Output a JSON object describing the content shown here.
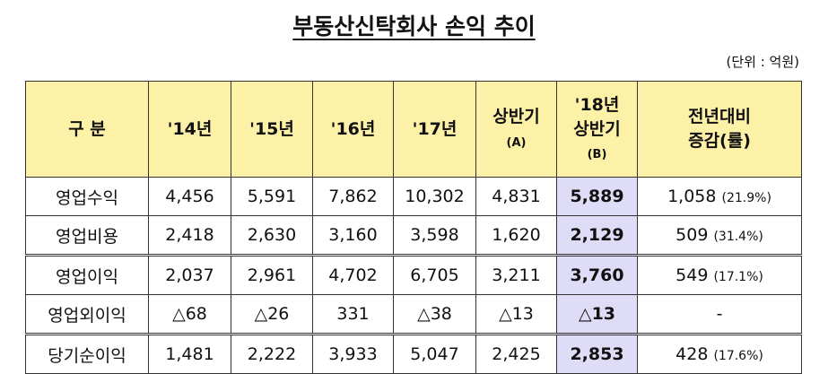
{
  "header": {
    "title": "부동산신탁회사 손익 추이",
    "unit": "(단위 : 억원)"
  },
  "table": {
    "columns": [
      [
        "구 분"
      ],
      [
        "'14년"
      ],
      [
        "'15년"
      ],
      [
        "'16년"
      ],
      [
        "'17년"
      ],
      [
        "상반기",
        "(A)"
      ],
      [
        "'18년",
        "상반기",
        "(B)"
      ],
      [
        "전년대비",
        "증감(률)"
      ]
    ],
    "rows": [
      {
        "label": "영업수익",
        "values": [
          "4,456",
          "5,591",
          "7,862",
          "10,302",
          "4,831",
          "5,889"
        ],
        "change": "1,058",
        "rate": "(21.9%)"
      },
      {
        "label": "영업비용",
        "values": [
          "2,418",
          "2,630",
          "3,160",
          "3,598",
          "1,620",
          "2,129"
        ],
        "change": "509",
        "rate": "(31.4%)"
      },
      {
        "label": "영업이익",
        "values": [
          "2,037",
          "2,961",
          "4,702",
          "6,705",
          "3,211",
          "3,760"
        ],
        "change": "549",
        "rate": "(17.1%)"
      },
      {
        "label": "영업외이익",
        "values": [
          "△68",
          "△26",
          "331",
          "△38",
          "△13",
          "△13"
        ],
        "change": "-"
      },
      {
        "label": "당기순이익",
        "values": [
          "1,481",
          "2,222",
          "3,933",
          "5,047",
          "2,425",
          "2,853"
        ],
        "change": "428",
        "rate": "(17.6%)"
      }
    ]
  }
}
